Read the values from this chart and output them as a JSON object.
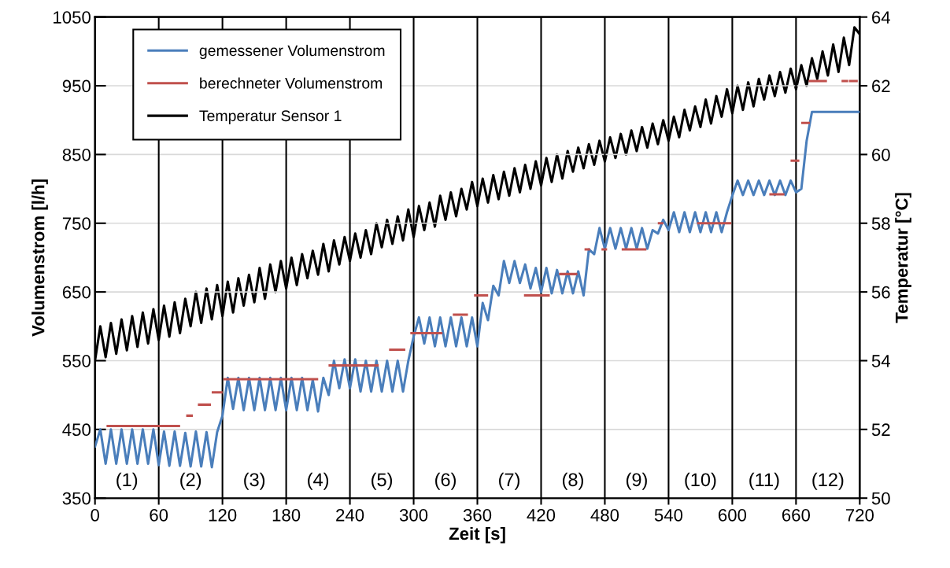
{
  "chart_data": {
    "type": "line",
    "xlabel": "Zeit [s]",
    "ylabel": "Volumenstrom [l/h]",
    "y2label": "Temperatur [°C]",
    "x": [
      0,
      5,
      10,
      15,
      20,
      25,
      30,
      35,
      40,
      45,
      50,
      55,
      60,
      65,
      70,
      75,
      80,
      85,
      90,
      95,
      100,
      105,
      110,
      115,
      120,
      125,
      130,
      135,
      140,
      145,
      150,
      155,
      160,
      165,
      170,
      175,
      180,
      185,
      190,
      195,
      200,
      205,
      210,
      215,
      220,
      225,
      230,
      235,
      240,
      245,
      250,
      255,
      260,
      265,
      270,
      275,
      280,
      285,
      290,
      295,
      300,
      305,
      310,
      315,
      320,
      325,
      330,
      335,
      340,
      345,
      350,
      355,
      360,
      365,
      370,
      375,
      380,
      385,
      390,
      395,
      400,
      405,
      410,
      415,
      420,
      425,
      430,
      435,
      440,
      445,
      450,
      455,
      460,
      465,
      470,
      475,
      480,
      485,
      490,
      495,
      500,
      505,
      510,
      515,
      520,
      525,
      530,
      535,
      540,
      545,
      550,
      555,
      560,
      565,
      570,
      575,
      580,
      585,
      590,
      595,
      600,
      605,
      610,
      615,
      620,
      625,
      630,
      635,
      640,
      645,
      650,
      655,
      660,
      665,
      670,
      675,
      680,
      685,
      690,
      695,
      700,
      705,
      710,
      715,
      720
    ],
    "series": [
      {
        "name": "gemessener Volumenstrom",
        "color": "#4a7ebb",
        "values": [
          425,
          450,
          400,
          450,
          400,
          450,
          400,
          450,
          400,
          450,
          400,
          450,
          398,
          447,
          397,
          447,
          397,
          445,
          396,
          447,
          396,
          446,
          395,
          446,
          470,
          525,
          480,
          525,
          478,
          525,
          478,
          525,
          478,
          525,
          478,
          525,
          478,
          525,
          478,
          525,
          478,
          522,
          476,
          525,
          500,
          550,
          510,
          552,
          510,
          552,
          505,
          550,
          505,
          550,
          505,
          550,
          505,
          550,
          505,
          550,
          585,
          613,
          575,
          613,
          571,
          613,
          571,
          613,
          571,
          613,
          571,
          613,
          571,
          634,
          609,
          659,
          645,
          695,
          663,
          695,
          663,
          690,
          655,
          685,
          650,
          685,
          648,
          682,
          648,
          680,
          648,
          680,
          645,
          712,
          705,
          743,
          713,
          743,
          713,
          743,
          713,
          743,
          713,
          743,
          713,
          740,
          735,
          755,
          740,
          766,
          737,
          766,
          737,
          766,
          737,
          766,
          737,
          766,
          737,
          766,
          790,
          812,
          791,
          812,
          791,
          812,
          791,
          812,
          791,
          812,
          791,
          812,
          795,
          800,
          870,
          912,
          912,
          912,
          912,
          912,
          912,
          912,
          912,
          912,
          912
        ]
      },
      {
        "name": "berechneter Volumenstrom",
        "color": "#c0504d",
        "x": [
          12,
          79,
          null,
          87,
          91,
          null,
          98,
          108,
          null,
          111,
          119,
          null,
          122,
          209,
          null,
          221,
          266,
          null,
          278,
          291,
          null,
          298,
          326,
          null,
          338,
          350,
          null,
          358,
          369,
          null,
          405,
          427,
          null,
          438,
          453,
          null,
          462,
          465,
          null,
          478,
          481,
          null,
          497,
          518,
          null,
          531,
          534,
          null,
          568,
          598,
          null,
          636,
          648,
          null,
          656,
          662,
          null,
          666,
          672,
          null,
          673,
          688,
          null,
          704,
          708,
          null,
          711,
          717
        ],
        "values": [
          455,
          455,
          null,
          470,
          470,
          null,
          486,
          486,
          null,
          504,
          504,
          null,
          523,
          523,
          null,
          543,
          543,
          null,
          566,
          566,
          null,
          590,
          590,
          null,
          617,
          617,
          null,
          645,
          645,
          null,
          645,
          645,
          null,
          676,
          676,
          null,
          712,
          712,
          null,
          712,
          712,
          null,
          712,
          712,
          null,
          750,
          750,
          null,
          750,
          750,
          null,
          792,
          792,
          null,
          841,
          841,
          null,
          896,
          896,
          null,
          957,
          957,
          null,
          957,
          957,
          null,
          957,
          957
        ]
      },
      {
        "name": "Temperatur Sensor 1",
        "color": "#000000",
        "axis": "y2",
        "values": [
          54.0,
          55.0,
          54.1,
          55.1,
          54.2,
          55.2,
          54.3,
          55.3,
          54.4,
          55.4,
          54.5,
          55.5,
          54.6,
          55.6,
          54.7,
          55.7,
          54.8,
          55.8,
          55.0,
          56.0,
          55.1,
          56.1,
          55.2,
          56.2,
          55.3,
          56.3,
          55.4,
          56.4,
          55.6,
          56.5,
          55.7,
          56.7,
          55.8,
          56.8,
          56.0,
          56.9,
          56.1,
          57.0,
          56.2,
          57.1,
          56.4,
          57.2,
          56.5,
          57.4,
          56.6,
          57.5,
          56.8,
          57.6,
          56.9,
          57.7,
          57.0,
          57.8,
          57.1,
          58.0,
          57.3,
          58.1,
          57.4,
          58.2,
          57.5,
          58.4,
          57.6,
          58.5,
          57.8,
          58.6,
          57.9,
          58.8,
          58.1,
          58.9,
          58.2,
          59.0,
          58.4,
          59.2,
          58.5,
          59.3,
          58.6,
          59.4,
          58.7,
          59.5,
          58.8,
          59.6,
          58.9,
          59.7,
          59.0,
          59.8,
          59.1,
          59.9,
          59.2,
          60.0,
          59.3,
          60.1,
          59.5,
          60.2,
          59.6,
          60.3,
          59.7,
          60.4,
          59.8,
          60.5,
          59.9,
          60.6,
          60.0,
          60.7,
          60.1,
          60.8,
          60.2,
          60.9,
          60.3,
          61.0,
          60.4,
          61.1,
          60.5,
          61.3,
          60.7,
          61.4,
          60.8,
          61.6,
          60.9,
          61.7,
          61.1,
          61.9,
          61.2,
          62.0,
          61.3,
          62.1,
          61.4,
          62.2,
          61.6,
          62.3,
          61.7,
          62.4,
          61.8,
          62.5,
          61.9,
          62.6,
          62.0,
          62.8,
          62.2,
          63.0,
          62.3,
          63.2,
          62.4,
          63.4,
          62.6,
          63.7,
          63.5
        ]
      }
    ],
    "xlim": [
      0,
      720
    ],
    "xticks": [
      0,
      60,
      120,
      180,
      240,
      300,
      360,
      420,
      480,
      540,
      600,
      660,
      720
    ],
    "ylim": [
      350,
      1050
    ],
    "yticks": [
      350,
      450,
      550,
      650,
      750,
      850,
      950,
      1050
    ],
    "y2lim": [
      50,
      64
    ],
    "y2ticks": [
      50,
      52,
      54,
      56,
      58,
      60,
      62,
      64
    ],
    "grid": true,
    "legend": "top left",
    "marker": "none",
    "line_style": "solid",
    "annotations": [
      "(1)",
      "(2)",
      "(3)",
      "(4)",
      "(5)",
      "(6)",
      "(7)",
      "(8)",
      "(9)",
      "(10)",
      "(11)",
      "(12)"
    ]
  }
}
